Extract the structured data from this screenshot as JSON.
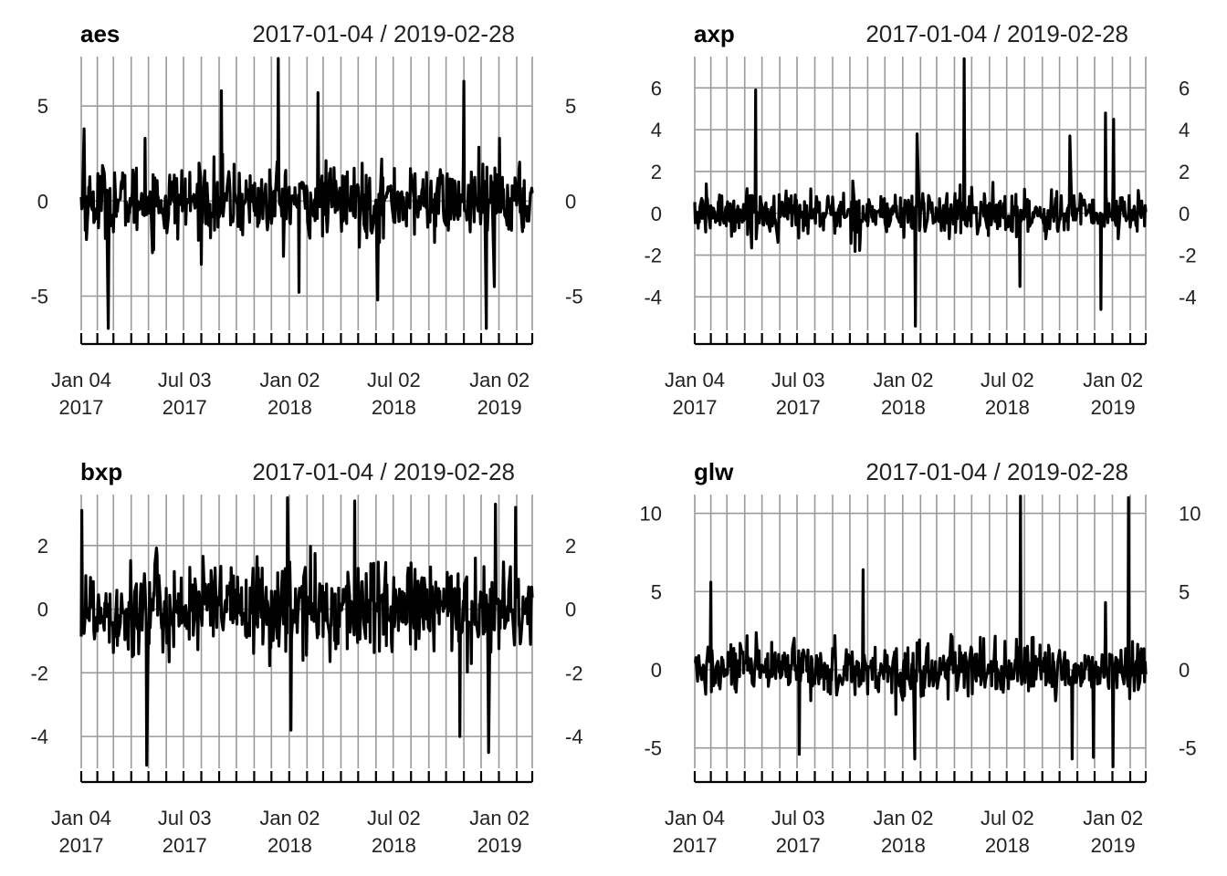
{
  "chart_data": [
    {
      "type": "line",
      "title": "aes",
      "date_range": "2017-01-04 / 2019-02-28",
      "x_start": "2017-01-04",
      "x_end": "2019-02-28",
      "x_tick_labels": [
        [
          "Jan 04",
          "2017"
        ],
        [
          "Jul 03",
          "2017"
        ],
        [
          "Jan 02",
          "2018"
        ],
        [
          "Jul 02",
          "2018"
        ],
        [
          "Jan 02",
          "2019"
        ]
      ],
      "y_ticks": [
        -5,
        0,
        5
      ],
      "ylim": [
        -6.8,
        7.6
      ],
      "grid": true,
      "spikes": [
        {
          "x": "2017-01-09",
          "y": 3.8
        },
        {
          "x": "2017-02-20",
          "y": -6.7
        },
        {
          "x": "2017-04-25",
          "y": 3.3
        },
        {
          "x": "2017-09-05",
          "y": 5.8
        },
        {
          "x": "2017-12-13",
          "y": 7.5
        },
        {
          "x": "2018-01-18",
          "y": -4.8
        },
        {
          "x": "2018-02-20",
          "y": 5.7
        },
        {
          "x": "2018-06-04",
          "y": -5.2
        },
        {
          "x": "2018-11-01",
          "y": 6.3
        },
        {
          "x": "2018-12-10",
          "y": -6.7
        },
        {
          "x": "2018-12-24",
          "y": -4.5
        },
        {
          "x": "2019-01-02",
          "y": 3.3
        }
      ],
      "noise_scale": 0.95
    },
    {
      "type": "line",
      "title": "axp",
      "date_range": "2017-01-04 / 2019-02-28",
      "x_start": "2017-01-04",
      "x_end": "2019-02-28",
      "x_tick_labels": [
        [
          "Jan 04",
          "2017"
        ],
        [
          "Jul 03",
          "2017"
        ],
        [
          "Jan 02",
          "2018"
        ],
        [
          "Jul 02",
          "2018"
        ],
        [
          "Jan 02",
          "2019"
        ]
      ],
      "y_ticks": [
        -4,
        -2,
        0,
        2,
        4,
        6
      ],
      "ylim": [
        -5.6,
        7.5
      ],
      "grid": true,
      "spikes": [
        {
          "x": "2017-04-20",
          "y": 5.9
        },
        {
          "x": "2018-01-23",
          "y": -5.4
        },
        {
          "x": "2018-01-26",
          "y": 3.8
        },
        {
          "x": "2018-04-18",
          "y": 7.4
        },
        {
          "x": "2018-07-24",
          "y": -3.5
        },
        {
          "x": "2018-10-19",
          "y": 3.7
        },
        {
          "x": "2018-12-12",
          "y": -4.6
        },
        {
          "x": "2018-12-20",
          "y": 4.8
        },
        {
          "x": "2019-01-03",
          "y": 4.5
        }
      ],
      "noise_scale": 0.55
    },
    {
      "type": "line",
      "title": "bxp",
      "date_range": "2017-01-04 / 2019-02-28",
      "x_start": "2017-01-04",
      "x_end": "2019-02-28",
      "x_tick_labels": [
        [
          "Jan 04",
          "2017"
        ],
        [
          "Jul 03",
          "2017"
        ],
        [
          "Jan 02",
          "2018"
        ],
        [
          "Jul 02",
          "2018"
        ],
        [
          "Jan 02",
          "2019"
        ]
      ],
      "y_ticks": [
        -4,
        -2,
        0,
        2
      ],
      "ylim": [
        -5.0,
        3.6
      ],
      "grid": true,
      "spikes": [
        {
          "x": "2017-01-05",
          "y": 3.1
        },
        {
          "x": "2017-04-28",
          "y": -4.9
        },
        {
          "x": "2017-12-29",
          "y": 3.5
        },
        {
          "x": "2018-01-04",
          "y": -3.8
        },
        {
          "x": "2018-04-25",
          "y": 3.4
        },
        {
          "x": "2018-10-25",
          "y": -4.0
        },
        {
          "x": "2018-12-14",
          "y": -4.5
        },
        {
          "x": "2018-12-26",
          "y": 3.3
        },
        {
          "x": "2019-01-30",
          "y": 3.2
        }
      ],
      "noise_scale": 0.75
    },
    {
      "type": "line",
      "title": "glw",
      "date_range": "2017-01-04 / 2019-02-28",
      "x_start": "2017-01-04",
      "x_end": "2019-02-28",
      "x_tick_labels": [
        [
          "Jan 04",
          "2017"
        ],
        [
          "Jul 03",
          "2017"
        ],
        [
          "Jan 02",
          "2018"
        ],
        [
          "Jul 02",
          "2018"
        ],
        [
          "Jan 02",
          "2019"
        ]
      ],
      "y_ticks": [
        -5,
        0,
        5,
        10
      ],
      "ylim": [
        -6.3,
        11.2
      ],
      "grid": true,
      "spikes": [
        {
          "x": "2017-02-01",
          "y": 5.6
        },
        {
          "x": "2017-07-05",
          "y": -5.4
        },
        {
          "x": "2017-10-24",
          "y": 6.4
        },
        {
          "x": "2018-01-22",
          "y": -5.7
        },
        {
          "x": "2018-07-25",
          "y": 11.1
        },
        {
          "x": "2018-10-23",
          "y": -5.7
        },
        {
          "x": "2018-11-29",
          "y": -5.6
        },
        {
          "x": "2019-01-02",
          "y": -6.2
        },
        {
          "x": "2019-01-29",
          "y": 11.0
        },
        {
          "x": "2018-12-20",
          "y": 4.3
        }
      ],
      "noise_scale": 0.85
    }
  ]
}
